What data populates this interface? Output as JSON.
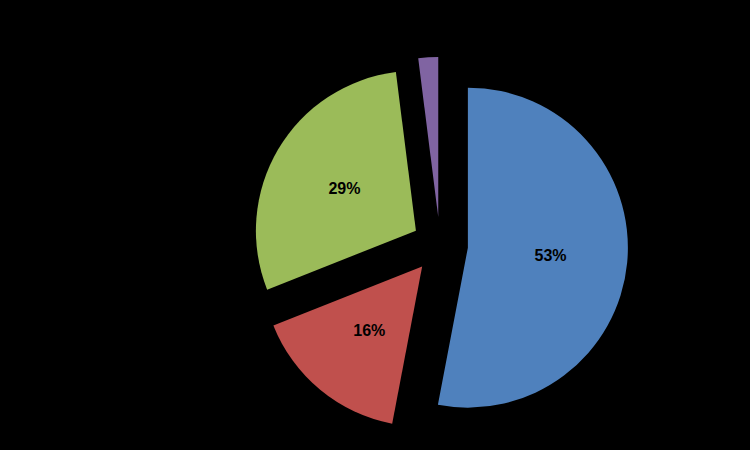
{
  "chart_data": {
    "type": "pie",
    "values": [
      53,
      16,
      29,
      2
    ],
    "value_labels": [
      "53%",
      "16%",
      "29%",
      null
    ],
    "colors": [
      "#4f81bd",
      "#c0504d",
      "#9bbb59",
      "#8064a2"
    ],
    "data_labels": true
  }
}
